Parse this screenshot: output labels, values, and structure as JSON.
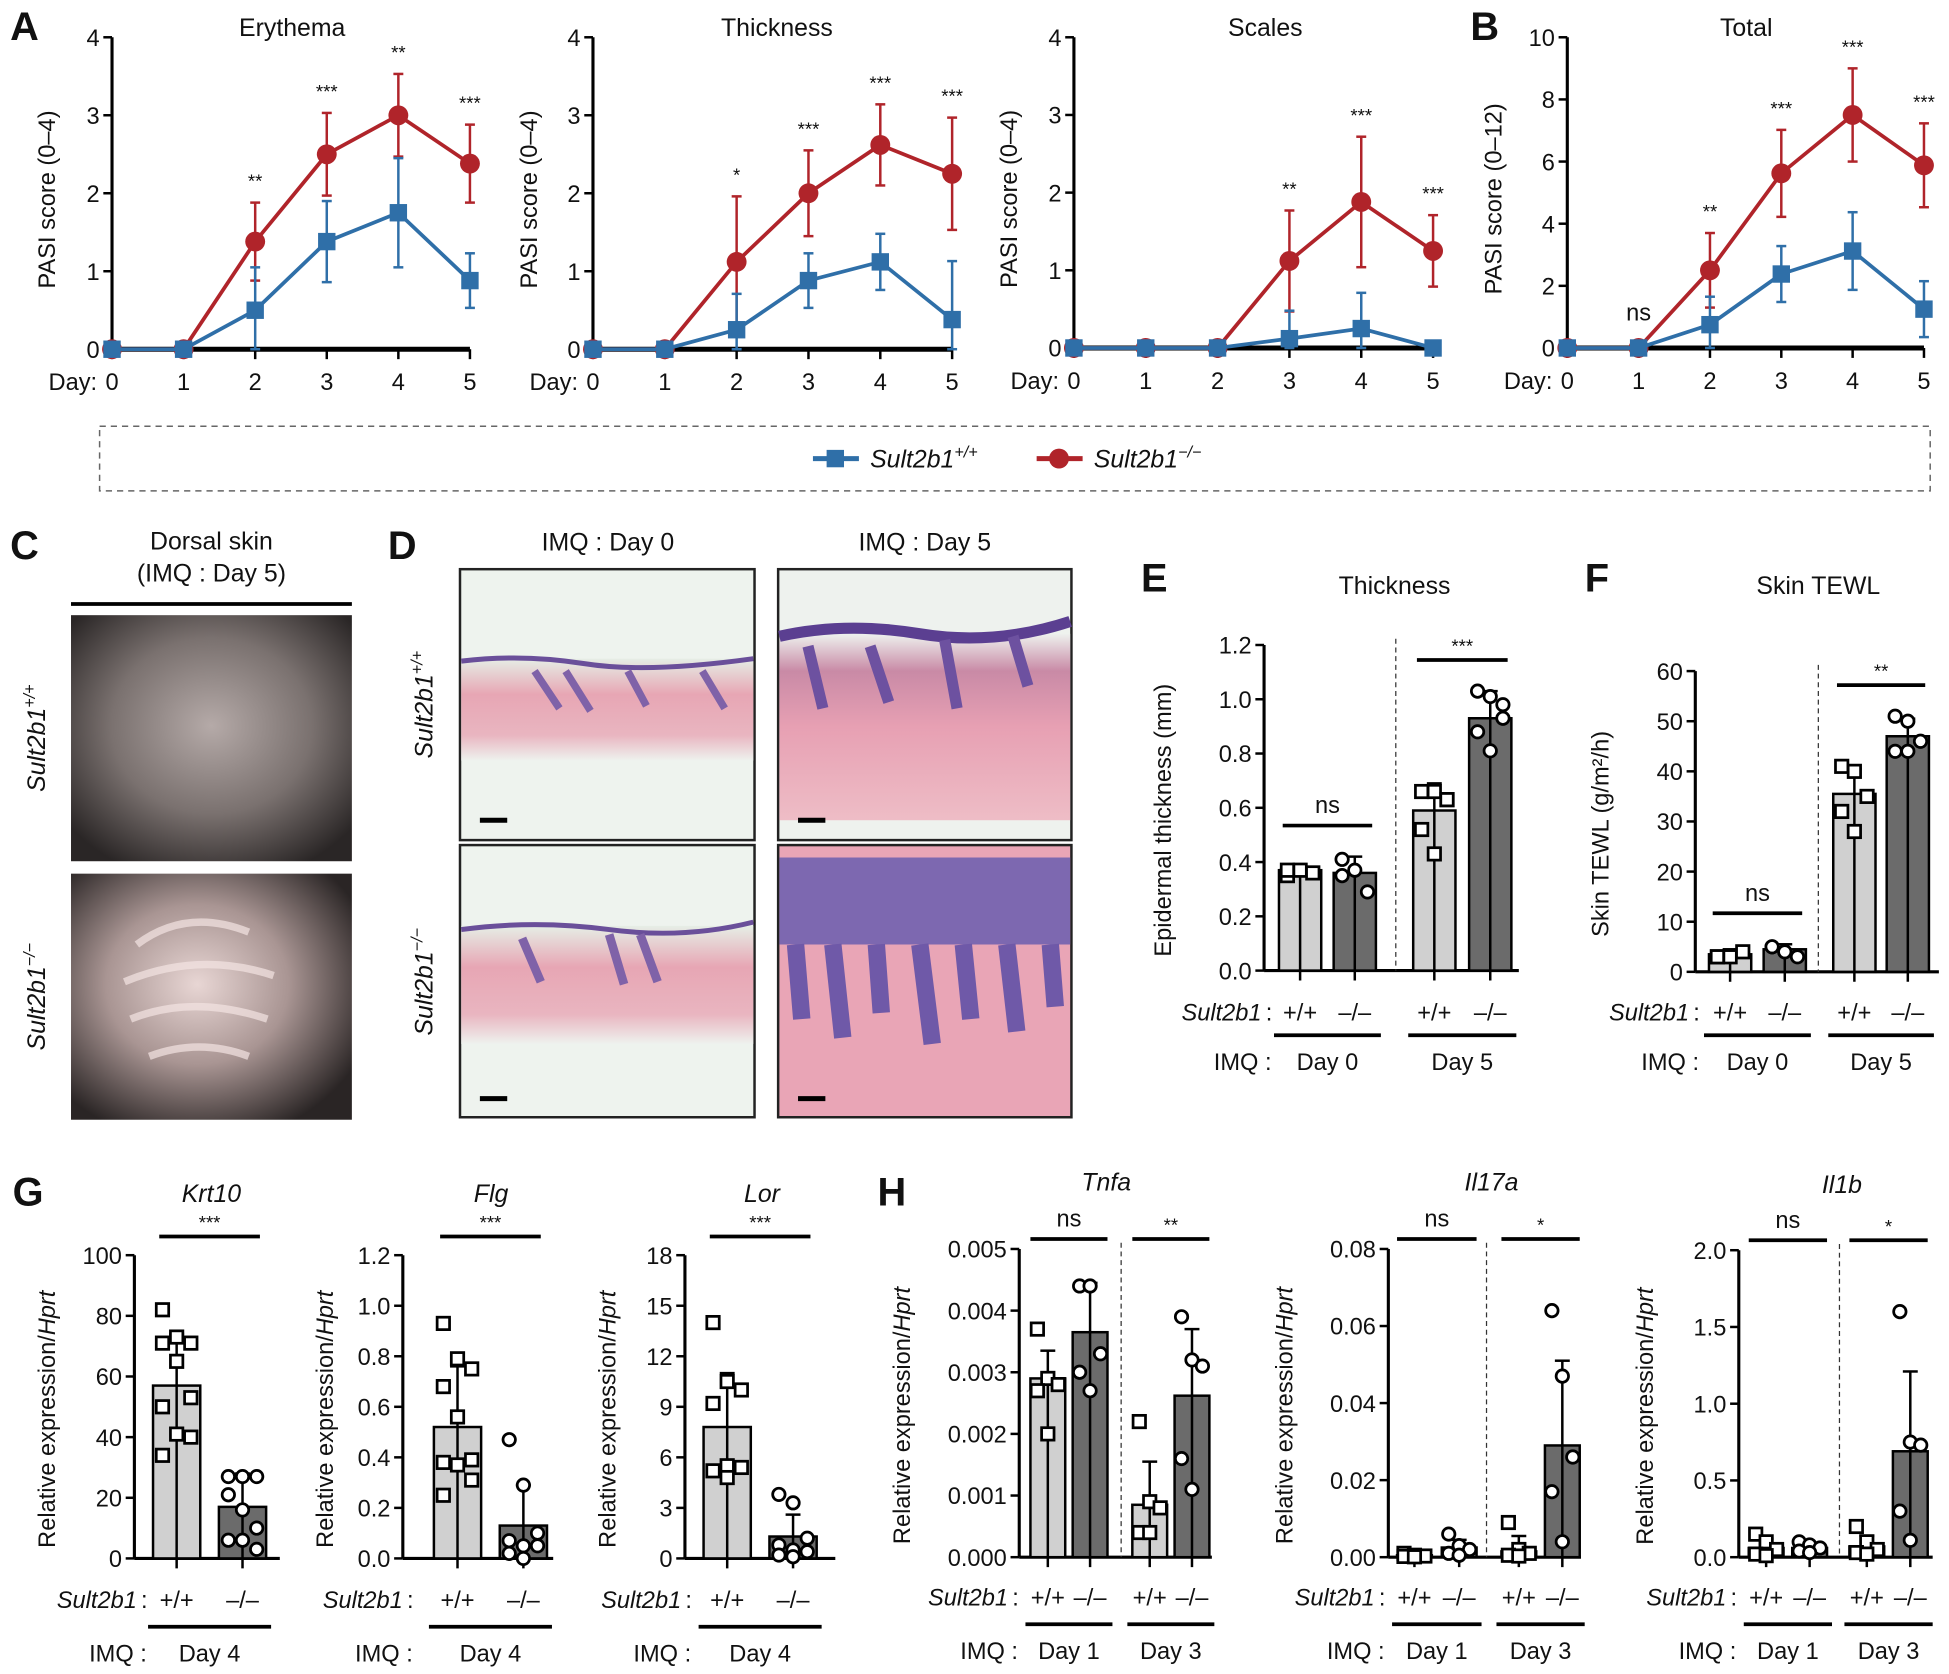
{
  "panel_labels": {
    "A": "A",
    "B": "B",
    "C": "C",
    "D": "D",
    "E": "E",
    "F": "F",
    "G": "G",
    "H": "H"
  },
  "colors": {
    "wt": "#2f6fa8",
    "ko": "#b0242a",
    "bar_wt": "#d0d0d0",
    "bar_ko": "#6b6b6b"
  },
  "legend": {
    "wt": {
      "gene": "Sult2b1",
      "sup": "+/+",
      "marker": "square"
    },
    "ko": {
      "gene": "Sult2b1",
      "sup": "−/−",
      "marker": "circle"
    }
  },
  "photos": {
    "title": "Dorsal skin",
    "subtitle": "(IMQ : Day 5)",
    "rows": [
      {
        "gene": "Sult2b1",
        "sup": "+/+"
      },
      {
        "gene": "Sult2b1",
        "sup": "−/−"
      }
    ]
  },
  "histology": {
    "columns": [
      "IMQ : Day 0",
      "IMQ : Day 5"
    ],
    "rows": [
      {
        "gene": "Sult2b1",
        "sup": "+/+"
      },
      {
        "gene": "Sult2b1",
        "sup": "−/−"
      }
    ]
  },
  "chart_data": [
    {
      "type": "line",
      "panel": "A",
      "title": "Erythema",
      "ylabel": "PASI score (0–4)",
      "xlabel": "Day:",
      "x": [
        0,
        1,
        2,
        3,
        4,
        5
      ],
      "ylim": [
        0,
        4
      ],
      "yticks": [
        0,
        1,
        2,
        3,
        4
      ],
      "ytick_labels": [
        "0",
        "1",
        "2",
        "3",
        "4"
      ],
      "series": [
        {
          "name": "Sult2b1+/+",
          "values": [
            0,
            0,
            0.5,
            1.38,
            1.75,
            0.88
          ],
          "error": [
            0,
            0,
            0.55,
            0.52,
            0.7,
            0.35
          ]
        },
        {
          "name": "Sult2b1−/−",
          "values": [
            0,
            0,
            1.38,
            2.5,
            3.0,
            2.38
          ],
          "error": [
            0,
            0,
            0.5,
            0.53,
            0.53,
            0.5
          ]
        }
      ],
      "sig": [
        "",
        "",
        "**",
        "***",
        "**",
        "***"
      ]
    },
    {
      "type": "line",
      "panel": "A",
      "title": "Thickness",
      "ylabel": "PASI score (0–4)",
      "xlabel": "Day:",
      "x": [
        0,
        1,
        2,
        3,
        4,
        5
      ],
      "ylim": [
        0,
        4
      ],
      "yticks": [
        0,
        1,
        2,
        3,
        4
      ],
      "ytick_labels": [
        "0",
        "1",
        "2",
        "3",
        "4"
      ],
      "series": [
        {
          "name": "Sult2b1+/+",
          "values": [
            0,
            0,
            0.25,
            0.88,
            1.12,
            0.38
          ],
          "error": [
            0,
            0,
            0.46,
            0.35,
            0.36,
            0.75
          ]
        },
        {
          "name": "Sult2b1−/−",
          "values": [
            0,
            0,
            1.12,
            2.0,
            2.62,
            2.25
          ],
          "error": [
            0,
            0,
            0.84,
            0.55,
            0.52,
            0.72
          ]
        }
      ],
      "sig": [
        "",
        "",
        "*",
        "***",
        "***",
        "***"
      ]
    },
    {
      "type": "line",
      "panel": "A",
      "title": "Scales",
      "ylabel": "PASI score (0–4)",
      "xlabel": "Day:",
      "x": [
        0,
        1,
        2,
        3,
        4,
        5
      ],
      "ylim": [
        0,
        4
      ],
      "yticks": [
        0,
        1,
        2,
        3,
        4
      ],
      "ytick_labels": [
        "0",
        "1",
        "2",
        "3",
        "4"
      ],
      "series": [
        {
          "name": "Sult2b1+/+",
          "values": [
            0,
            0,
            0,
            0.12,
            0.25,
            0
          ],
          "error": [
            0,
            0,
            0,
            0.36,
            0.46,
            0
          ]
        },
        {
          "name": "Sult2b1−/−",
          "values": [
            0,
            0,
            0,
            1.12,
            1.88,
            1.25
          ],
          "error": [
            0,
            0,
            0,
            0.65,
            0.84,
            0.46
          ]
        }
      ],
      "sig": [
        "",
        "",
        "",
        "**",
        "***",
        "***"
      ]
    },
    {
      "type": "line",
      "panel": "B",
      "title": "Total",
      "ylabel": "PASI score (0–12)",
      "xlabel": "Day:",
      "x": [
        0,
        1,
        2,
        3,
        4,
        5
      ],
      "ylim": [
        0,
        10
      ],
      "yticks": [
        0,
        2,
        4,
        6,
        8,
        10
      ],
      "ytick_labels": [
        "0",
        "2",
        "4",
        "6",
        "8",
        "10"
      ],
      "series": [
        {
          "name": "Sult2b1+/+",
          "values": [
            0,
            0,
            0.75,
            2.38,
            3.12,
            1.25
          ],
          "error": [
            0,
            0,
            0.9,
            0.9,
            1.25,
            0.9
          ]
        },
        {
          "name": "Sult2b1−/−",
          "values": [
            0,
            0,
            2.5,
            5.62,
            7.5,
            5.88
          ],
          "error": [
            0,
            0,
            1.2,
            1.4,
            1.5,
            1.35
          ]
        }
      ],
      "sig": [
        "",
        "ns",
        "**",
        "***",
        "***",
        "***"
      ]
    },
    {
      "type": "bar",
      "panel": "E",
      "title": "Thickness",
      "title_italic": false,
      "ylabel": "Epidermal thickness (mm)",
      "ylabel_italic": "",
      "ylim": [
        0,
        1.2
      ],
      "yticks": [
        0,
        0.2,
        0.4,
        0.6,
        0.8,
        1.0,
        1.2
      ],
      "ytick_labels": [
        "0.0",
        "0.2",
        "0.4",
        "0.6",
        "0.8",
        "1.0",
        "1.2"
      ],
      "row_label": "Sult2b1",
      "row_colon": ":",
      "group_label": "IMQ :",
      "groups": [
        {
          "label": "Day 0",
          "sig": "ns",
          "bars": [
            {
              "genotype": "+/+",
              "mean": 0.37,
              "sd": 0.02,
              "points": [
                0.35,
                0.37,
                0.36,
                0.37
              ]
            },
            {
              "genotype": "–/–",
              "mean": 0.36,
              "sd": 0.06,
              "points": [
                0.41,
                0.37,
                0.29,
                0.35
              ]
            }
          ]
        },
        {
          "label": "Day 5",
          "sig": "***",
          "bars": [
            {
              "genotype": "+/+",
              "mean": 0.59,
              "sd": 0.1,
              "points": [
                0.66,
                0.66,
                0.63,
                0.52,
                0.43,
                0.63
              ]
            },
            {
              "genotype": "–/–",
              "mean": 0.93,
              "sd": 0.1,
              "points": [
                1.03,
                1.01,
                0.93,
                0.88,
                0.81,
                0.98
              ]
            }
          ]
        }
      ]
    },
    {
      "type": "bar",
      "panel": "F",
      "title": "Skin TEWL",
      "title_italic": false,
      "ylabel": "Skin TEWL (g/m²/h)",
      "ylabel_italic": "",
      "ylim": [
        0,
        60
      ],
      "yticks": [
        0,
        10,
        20,
        30,
        40,
        50,
        60
      ],
      "ytick_labels": [
        "0",
        "10",
        "20",
        "30",
        "40",
        "50",
        "60"
      ],
      "row_label": "Sult2b1",
      "row_colon": ":",
      "group_label": "IMQ :",
      "groups": [
        {
          "label": "Day 0",
          "sig": "ns",
          "bars": [
            {
              "genotype": "+/+",
              "mean": 3.5,
              "sd": 1,
              "points": [
                3,
                3,
                4,
                3
              ]
            },
            {
              "genotype": "–/–",
              "mean": 4.5,
              "sd": 1,
              "points": [
                5,
                4,
                3,
                5,
                4
              ]
            }
          ]
        },
        {
          "label": "Day 5",
          "sig": "**",
          "bars": [
            {
              "genotype": "+/+",
              "mean": 35.5,
              "sd": 5,
              "points": [
                41,
                40,
                35,
                32,
                28
              ]
            },
            {
              "genotype": "–/–",
              "mean": 47,
              "sd": 3.5,
              "points": [
                51,
                50,
                46,
                44,
                44
              ]
            }
          ]
        }
      ]
    },
    {
      "type": "bar",
      "panel": "G",
      "title": "Krt10",
      "title_italic": true,
      "ylabel": "Relative expression/",
      "ylabel_italic": "Hprt",
      "ylim": [
        0,
        100
      ],
      "yticks": [
        0,
        20,
        40,
        60,
        80,
        100
      ],
      "ytick_labels": [
        "0",
        "20",
        "40",
        "60",
        "80",
        "100"
      ],
      "row_label": "Sult2b1",
      "row_colon": ":",
      "group_label": "IMQ :",
      "groups": [
        {
          "label": "Day 4",
          "sig": "***",
          "bars": [
            {
              "genotype": "+/+",
              "mean": 57,
              "sd": 17,
              "points": [
                82,
                73,
                71,
                71,
                65,
                53,
                50,
                41,
                40,
                34
              ]
            },
            {
              "genotype": "–/–",
              "mean": 17,
              "sd": 11,
              "points": [
                27,
                27,
                27,
                21,
                16,
                10,
                6,
                6,
                3
              ]
            }
          ]
        }
      ]
    },
    {
      "type": "bar",
      "panel": "G",
      "title": "Flg",
      "title_italic": true,
      "ylabel": "Relative expression/",
      "ylabel_italic": "Hprt",
      "ylim": [
        0,
        1.2
      ],
      "yticks": [
        0,
        0.2,
        0.4,
        0.6,
        0.8,
        1.0,
        1.2
      ],
      "ytick_labels": [
        "0.0",
        "0.2",
        "0.4",
        "0.6",
        "0.8",
        "1.0",
        "1.2"
      ],
      "row_label": "Sult2b1",
      "row_colon": ":",
      "group_label": "IMQ :",
      "groups": [
        {
          "label": "Day 4",
          "sig": "***",
          "bars": [
            {
              "genotype": "+/+",
              "mean": 0.52,
              "sd": 0.24,
              "points": [
                0.93,
                0.79,
                0.75,
                0.68,
                0.56,
                0.39,
                0.38,
                0.37,
                0.31,
                0.25
              ]
            },
            {
              "genotype": "–/–",
              "mean": 0.13,
              "sd": 0.16,
              "points": [
                0.47,
                0.29,
                0.1,
                0.07,
                0.05,
                0.05,
                0.02,
                0.0
              ]
            }
          ]
        }
      ]
    },
    {
      "type": "bar",
      "panel": "G",
      "title": "Lor",
      "title_italic": true,
      "ylabel": "Relative expression/",
      "ylabel_italic": "Hprt",
      "ylim": [
        0,
        18
      ],
      "yticks": [
        0,
        3,
        6,
        9,
        12,
        15,
        18
      ],
      "ytick_labels": [
        "0",
        "3",
        "6",
        "9",
        "12",
        "15",
        "18"
      ],
      "row_label": "Sult2b1",
      "row_colon": ":",
      "group_label": "IMQ :",
      "groups": [
        {
          "label": "Day 4",
          "sig": "***",
          "bars": [
            {
              "genotype": "+/+",
              "mean": 7.8,
              "sd": 3.2,
              "points": [
                14,
                10.5,
                10,
                9.2,
                5.5,
                5.4,
                5.2,
                4.8
              ]
            },
            {
              "genotype": "–/–",
              "mean": 1.3,
              "sd": 1.3,
              "points": [
                3.8,
                3.3,
                1.2,
                0.8,
                0.5,
                0.4,
                0.2,
                0.1
              ]
            }
          ]
        }
      ]
    },
    {
      "type": "bar",
      "panel": "H",
      "title": "Tnfa",
      "title_italic": true,
      "ylabel": "Relative expression/",
      "ylabel_italic": "Hprt",
      "ylim": [
        0,
        0.005
      ],
      "yticks": [
        0,
        0.001,
        0.002,
        0.003,
        0.004,
        0.005
      ],
      "ytick_labels": [
        "0.000",
        "0.001",
        "0.002",
        "0.003",
        "0.004",
        "0.005"
      ],
      "row_label": "Sult2b1",
      "row_colon": ":",
      "group_label": "IMQ :",
      "groups": [
        {
          "label": "Day 1",
          "sig": "ns",
          "bars": [
            {
              "genotype": "+/+",
              "mean": 0.0029,
              "sd": 0.00045,
              "points": [
                0.0037,
                0.0029,
                0.0028,
                0.0027,
                0.002
              ]
            },
            {
              "genotype": "–/–",
              "mean": 0.00365,
              "sd": 0.0008,
              "points": [
                0.0044,
                0.0044,
                0.0033,
                0.003,
                0.0027
              ]
            }
          ]
        },
        {
          "label": "Day 3",
          "sig": "**",
          "bars": [
            {
              "genotype": "+/+",
              "mean": 0.00085,
              "sd": 0.0007,
              "points": [
                0.0022,
                0.0009,
                0.0008,
                0.0004,
                0.0004
              ]
            },
            {
              "genotype": "–/–",
              "mean": 0.00262,
              "sd": 0.00108,
              "points": [
                0.0039,
                0.0032,
                0.0031,
                0.0016,
                0.0011
              ]
            }
          ]
        }
      ]
    },
    {
      "type": "bar",
      "panel": "H",
      "title": "Il17a",
      "title_italic": true,
      "ylabel": "Relative expression/",
      "ylabel_italic": "Hprt",
      "ylim": [
        0,
        0.08
      ],
      "yticks": [
        0,
        0.02,
        0.04,
        0.06,
        0.08
      ],
      "ytick_labels": [
        "0.00",
        "0.02",
        "0.04",
        "0.06",
        "0.08"
      ],
      "row_label": "Sult2b1",
      "row_colon": ":",
      "group_label": "IMQ :",
      "groups": [
        {
          "label": "Day 1",
          "sig": "ns",
          "bars": [
            {
              "genotype": "+/+",
              "mean": 0.0005,
              "sd": 0.0005,
              "points": [
                0.001,
                0.0005,
                0.0003,
                0.0002,
                0.0001
              ]
            },
            {
              "genotype": "–/–",
              "mean": 0.0025,
              "sd": 0.002,
              "points": [
                0.006,
                0.003,
                0.002,
                0.001,
                0.0005
              ]
            }
          ]
        },
        {
          "label": "Day 3",
          "sig": "*",
          "bars": [
            {
              "genotype": "+/+",
              "mean": 0.0015,
              "sd": 0.004,
              "points": [
                0.009,
                0.002,
                0.001,
                0.0005,
                0.0003
              ]
            },
            {
              "genotype": "–/–",
              "mean": 0.029,
              "sd": 0.022,
              "points": [
                0.064,
                0.047,
                0.026,
                0.017,
                0.004
              ]
            }
          ]
        }
      ]
    },
    {
      "type": "bar",
      "panel": "H",
      "title": "Il1b",
      "title_italic": true,
      "ylabel": "Relative expression/",
      "ylabel_italic": "Hprt",
      "ylim": [
        0,
        2.0
      ],
      "yticks": [
        0,
        0.5,
        1.0,
        1.5,
        2.0
      ],
      "ytick_labels": [
        "0.0",
        "0.5",
        "1.0",
        "1.5",
        "2.0"
      ],
      "row_label": "Sult2b1",
      "row_colon": ":",
      "group_label": "IMQ :",
      "groups": [
        {
          "label": "Day 1",
          "sig": "ns",
          "bars": [
            {
              "genotype": "+/+",
              "mean": 0.06,
              "sd": 0.06,
              "points": [
                0.15,
                0.1,
                0.05,
                0.02,
                0.01
              ]
            },
            {
              "genotype": "–/–",
              "mean": 0.06,
              "sd": 0.03,
              "points": [
                0.1,
                0.08,
                0.06,
                0.04,
                0.03
              ]
            }
          ]
        },
        {
          "label": "Day 3",
          "sig": "*",
          "bars": [
            {
              "genotype": "+/+",
              "mean": 0.07,
              "sd": 0.07,
              "points": [
                0.2,
                0.1,
                0.05,
                0.03,
                0.02
              ]
            },
            {
              "genotype": "–/–",
              "mean": 0.69,
              "sd": 0.52,
              "points": [
                1.6,
                0.75,
                0.73,
                0.3,
                0.11
              ]
            }
          ]
        }
      ]
    }
  ]
}
